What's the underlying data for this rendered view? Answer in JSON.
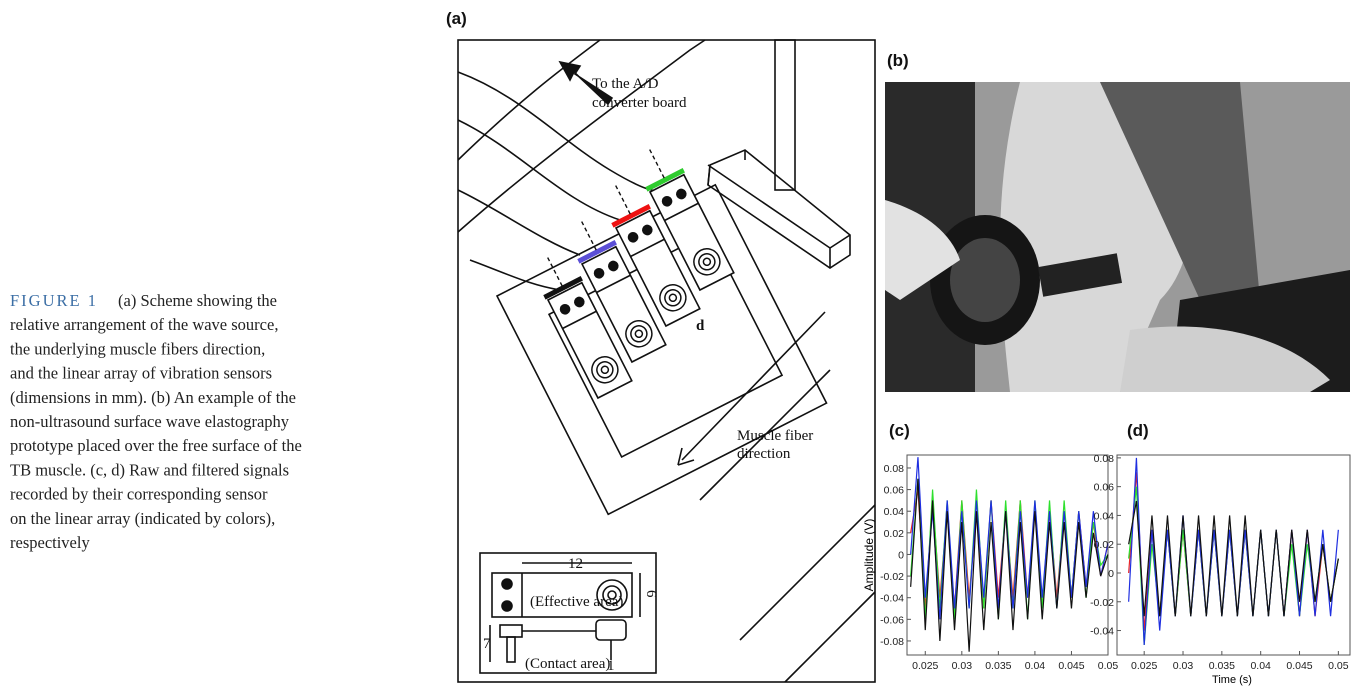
{
  "caption": {
    "label": "FIGURE 1",
    "lines": [
      "(a) Scheme showing the",
      "relative arrangement of the wave source,",
      "the underlying muscle fibers direction,",
      "and the linear array of vibration sensors",
      "(dimensions in mm). (b) An example of the",
      "non-ultrasound surface wave elastography",
      "prototype placed over the free surface of the",
      "TB muscle. (c, d) Raw and filtered signals",
      "recorded by their corresponding sensor",
      "on the linear array (indicated by colors),",
      "respectively"
    ]
  },
  "panel_a": {
    "label": "(a)",
    "arrow_text_1": "To the A/D",
    "arrow_text_2": "converter board",
    "spacing_label": "d",
    "fiber_text_1": "Muscle fiber",
    "fiber_text_2": "direction",
    "length_label": "12",
    "width_label": "6",
    "effective_label": "(Effective area)",
    "height_label": "7",
    "contact_label": "(Contact area)",
    "tip_label": "1"
  },
  "panel_b": {
    "label": "(b)"
  },
  "chart_data": [
    {
      "type": "line",
      "title": "(c)",
      "ylabel": "Amplitude (V)",
      "x": [
        0.023,
        0.024,
        0.025,
        0.026,
        0.027,
        0.028,
        0.029,
        0.03,
        0.031,
        0.032,
        0.033,
        0.034,
        0.035,
        0.036,
        0.037,
        0.038,
        0.039,
        0.04,
        0.041,
        0.042,
        0.043,
        0.044,
        0.045,
        0.046,
        0.047,
        0.048,
        0.049,
        0.05
      ],
      "xlim": [
        0.0225,
        0.05
      ],
      "xticks": [
        0.025,
        0.03,
        0.035,
        0.04,
        0.045,
        0.05
      ],
      "ylim": [
        -0.093,
        0.092
      ],
      "yticks": [
        0.08,
        0.06,
        0.04,
        0.02,
        0,
        -0.02,
        -0.04,
        -0.06,
        -0.08
      ],
      "series": [
        {
          "color": "#e8262a",
          "values": [
            0.02,
            0.06,
            -0.05,
            0.05,
            -0.04,
            0.04,
            -0.05,
            0.05,
            -0.04,
            0.04,
            -0.05,
            0.05,
            -0.04,
            0.04,
            -0.04,
            0.05,
            -0.04,
            0.04,
            -0.05,
            0.04,
            -0.04,
            0.04,
            -0.04,
            0.04,
            -0.03,
            0.03,
            -0.02,
            0.01
          ]
        },
        {
          "color": "#2ee02e",
          "values": [
            -0.02,
            0.07,
            -0.06,
            0.06,
            -0.05,
            0.05,
            -0.06,
            0.05,
            -0.05,
            0.06,
            -0.05,
            0.05,
            -0.06,
            0.05,
            -0.05,
            0.05,
            -0.06,
            0.05,
            -0.05,
            0.05,
            -0.05,
            0.05,
            -0.04,
            0.04,
            -0.04,
            0.03,
            -0.01,
            0.0
          ]
        },
        {
          "color": "#1f2fe0",
          "values": [
            0.0,
            0.09,
            -0.04,
            0.04,
            -0.06,
            0.05,
            -0.05,
            0.04,
            -0.05,
            0.05,
            -0.04,
            0.05,
            -0.05,
            0.04,
            -0.05,
            0.04,
            -0.04,
            0.05,
            -0.04,
            0.04,
            -0.05,
            0.04,
            -0.04,
            0.04,
            -0.03,
            0.04,
            -0.02,
            0.01
          ]
        },
        {
          "color": "#111111",
          "values": [
            -0.03,
            0.07,
            -0.07,
            0.05,
            -0.08,
            0.04,
            -0.07,
            0.03,
            -0.09,
            0.04,
            -0.07,
            0.03,
            -0.06,
            0.04,
            -0.07,
            0.03,
            -0.06,
            0.04,
            -0.06,
            0.03,
            -0.05,
            0.03,
            -0.05,
            0.03,
            -0.04,
            0.02,
            -0.02,
            0.0
          ]
        }
      ]
    },
    {
      "type": "line",
      "title": "(d)",
      "xlabel": "Time (s)",
      "x": [
        0.023,
        0.024,
        0.025,
        0.026,
        0.027,
        0.028,
        0.029,
        0.03,
        0.031,
        0.032,
        0.033,
        0.034,
        0.035,
        0.036,
        0.037,
        0.038,
        0.039,
        0.04,
        0.041,
        0.042,
        0.043,
        0.044,
        0.045,
        0.046,
        0.047,
        0.048,
        0.049,
        0.05
      ],
      "xlim": [
        0.0215,
        0.0515
      ],
      "xticks": [
        0.025,
        0.03,
        0.035,
        0.04,
        0.045,
        0.05
      ],
      "ylim": [
        -0.057,
        0.082
      ],
      "yticks": [
        0.08,
        0.06,
        0.04,
        0.02,
        0,
        -0.02,
        -0.04
      ],
      "series": [
        {
          "color": "#e8262a",
          "values": [
            0.0,
            0.07,
            -0.04,
            0.03,
            -0.03,
            0.03,
            -0.03,
            0.03,
            -0.03,
            0.03,
            -0.03,
            0.03,
            -0.03,
            0.03,
            -0.03,
            0.03,
            -0.03,
            0.03,
            -0.03,
            0.03,
            -0.03,
            0.03,
            -0.03,
            0.03,
            -0.03,
            0.02,
            -0.02,
            0.01
          ]
        },
        {
          "color": "#2ee02e",
          "values": [
            0.01,
            0.06,
            -0.05,
            0.02,
            -0.03,
            0.03,
            -0.03,
            0.03,
            -0.03,
            0.03,
            -0.03,
            0.03,
            -0.03,
            0.03,
            -0.03,
            0.03,
            -0.03,
            0.03,
            -0.03,
            0.03,
            -0.03,
            0.02,
            -0.03,
            0.02,
            -0.02,
            0.02,
            -0.02,
            0.01
          ]
        },
        {
          "color": "#1f2fe0",
          "values": [
            -0.02,
            0.08,
            -0.05,
            0.03,
            -0.04,
            0.03,
            -0.03,
            0.04,
            -0.03,
            0.03,
            -0.03,
            0.03,
            -0.03,
            0.03,
            -0.03,
            0.03,
            -0.03,
            0.03,
            -0.03,
            0.03,
            -0.03,
            0.03,
            -0.03,
            0.03,
            -0.03,
            0.03,
            -0.03,
            0.03
          ]
        },
        {
          "color": "#111111",
          "values": [
            0.02,
            0.05,
            -0.03,
            0.04,
            -0.03,
            0.04,
            -0.03,
            0.04,
            -0.03,
            0.04,
            -0.03,
            0.04,
            -0.03,
            0.04,
            -0.03,
            0.04,
            -0.03,
            0.03,
            -0.03,
            0.03,
            -0.03,
            0.03,
            -0.02,
            0.03,
            -0.02,
            0.02,
            -0.02,
            0.01
          ]
        }
      ]
    }
  ]
}
